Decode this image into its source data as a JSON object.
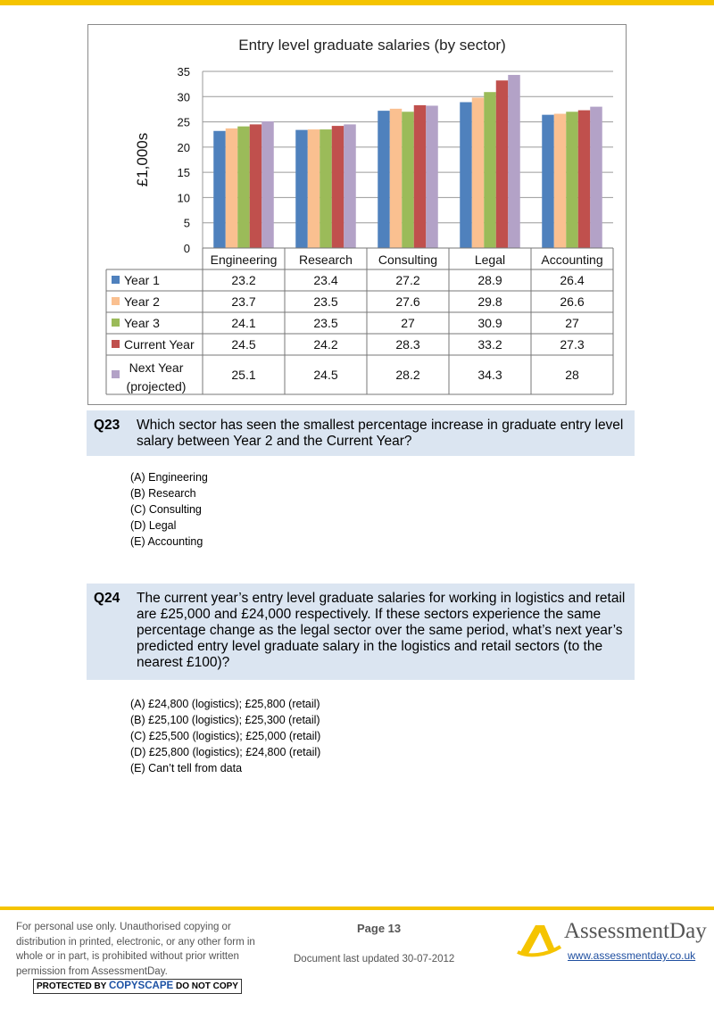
{
  "chart_data": {
    "type": "bar",
    "title": "Entry level graduate salaries (by sector)",
    "ylabel": "£1,000s",
    "ylim": [
      0,
      35
    ],
    "yticks": [
      "0",
      "5",
      "10",
      "15",
      "20",
      "25",
      "30",
      "35"
    ],
    "grid": true,
    "categories": [
      "Engineering",
      "Research",
      "Consulting",
      "Legal",
      "Accounting"
    ],
    "series": [
      {
        "name": "Year 1",
        "color": "#4f81bd",
        "values": [
          23.2,
          23.4,
          27.2,
          28.9,
          26.4
        ]
      },
      {
        "name": "Year 2",
        "color": "#fac090",
        "values": [
          23.7,
          23.5,
          27.6,
          29.8,
          26.6
        ]
      },
      {
        "name": "Year 3",
        "color": "#9bbb59",
        "values": [
          24.1,
          23.5,
          27,
          30.9,
          27
        ]
      },
      {
        "name": "Current Year",
        "color": "#c0504d",
        "values": [
          24.5,
          24.2,
          28.3,
          33.2,
          27.3
        ]
      },
      {
        "name": "Next Year (projected)",
        "color": "#b3a2c7",
        "values": [
          25.1,
          24.5,
          28.2,
          34.3,
          28
        ]
      }
    ],
    "table_cells": [
      [
        "23.2",
        "23.4",
        "27.2",
        "28.9",
        "26.4"
      ],
      [
        "23.7",
        "23.5",
        "27.6",
        "29.8",
        "26.6"
      ],
      [
        "24.1",
        "23.5",
        "27",
        "30.9",
        "27"
      ],
      [
        "24.5",
        "24.2",
        "28.3",
        "33.2",
        "27.3"
      ],
      [
        "25.1",
        "24.5",
        "28.2",
        "34.3",
        "28"
      ]
    ]
  },
  "q23": {
    "number": "Q23",
    "text": "Which sector has seen the smallest percentage increase in graduate entry level salary between Year 2 and the Current Year?",
    "options": [
      "(A) Engineering",
      "(B) Research",
      "(C) Consulting",
      "(D) Legal",
      "(E) Accounting"
    ]
  },
  "q24": {
    "number": "Q24",
    "text": "The current year’s entry level graduate salaries for working in logistics and retail are £25,000 and £24,000 respectively. If these sectors experience the same percentage change as the legal sector over the same period, what’s next year’s predicted entry level graduate salary in the logistics and retail sectors (to the nearest £100)?",
    "options": [
      "(A) £24,800 (logistics); £25,800 (retail)",
      "(B) £25,100 (logistics); £25,300 (retail)",
      "(C) £25,500 (logistics); £25,000 (retail)",
      "(D) £25,800 (logistics); £24,800 (retail)",
      "(E) Can’t tell from data"
    ]
  },
  "footer": {
    "notice": "For personal use only. Unauthorised copying or distribution in printed, electronic, or any other form in whole or in part, is prohibited without prior written permission from AssessmentDay.",
    "copyscape_left": "PROTECTED BY",
    "copyscape_mid": "COPYSCAPE",
    "copyscape_right": "DO NOT COPY",
    "page": "Page 13",
    "updated": "Document last updated 30-07-2012",
    "brand": "AssessmentDay",
    "website": "www.assessmentday.co.uk",
    "brand_color": "#f5c400"
  },
  "icons": [
    "assessmentday-logo-icon"
  ]
}
